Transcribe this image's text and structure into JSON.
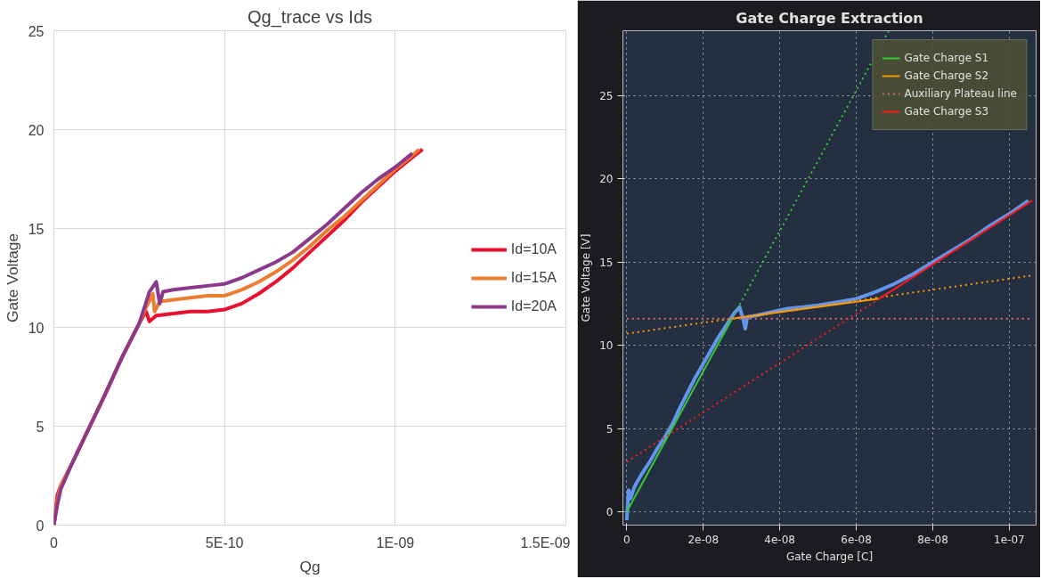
{
  "chart_data": [
    {
      "type": "line",
      "title": "Qg_trace vs Ids",
      "xlabel": "Qg",
      "ylabel": "Gate Voltage",
      "xlim": [
        0,
        1.5e-09
      ],
      "ylim": [
        0,
        25
      ],
      "xticks": [
        0,
        {
          "value": 5e-10,
          "label": "5E-10"
        },
        {
          "value": 1e-09,
          "label": "1E-09"
        },
        {
          "value": 1.5e-09,
          "label": "1.5E-09"
        }
      ],
      "yticks": [
        0,
        5,
        10,
        15,
        20,
        25
      ],
      "grid": true,
      "legend": "right",
      "line_style": "solid",
      "marker": "none",
      "series": [
        {
          "name": "Id=10A",
          "color": "#e8102e",
          "x": [
            0,
            1e-11,
            2e-11,
            5e-11,
            1e-10,
            1.5e-10,
            2e-10,
            2.5e-10,
            2.7e-10,
            2.8e-10,
            3e-10,
            3.5e-10,
            4e-10,
            4.5e-10,
            5e-10,
            5.5e-10,
            6e-10,
            6.5e-10,
            7e-10,
            7.5e-10,
            8e-10,
            8.5e-10,
            9e-10,
            9.5e-10,
            1e-09,
            1.05e-09,
            1.08e-09
          ],
          "values": [
            0,
            1.5,
            2,
            3,
            4.8,
            6.6,
            8.5,
            10.2,
            10.8,
            10.3,
            10.6,
            10.7,
            10.8,
            10.8,
            10.9,
            11.2,
            11.7,
            12.3,
            13,
            13.8,
            14.6,
            15.4,
            16.3,
            17.1,
            17.9,
            18.6,
            19
          ]
        },
        {
          "name": "Id=15A",
          "color": "#ed7d31",
          "x": [
            0,
            1e-11,
            2e-11,
            5e-11,
            1e-10,
            1.5e-10,
            2e-10,
            2.5e-10,
            2.7e-10,
            2.9e-10,
            2.95e-10,
            3.1e-10,
            3.5e-10,
            4e-10,
            4.5e-10,
            5e-10,
            5.5e-10,
            6e-10,
            6.5e-10,
            7e-10,
            7.5e-10,
            8e-10,
            8.5e-10,
            9e-10,
            9.5e-10,
            1e-09,
            1.05e-09,
            1.07e-09
          ],
          "values": [
            0,
            1.2,
            2,
            3,
            4.8,
            6.6,
            8.5,
            10.2,
            11,
            11.7,
            10.8,
            11.3,
            11.4,
            11.5,
            11.6,
            11.6,
            11.9,
            12.3,
            12.8,
            13.4,
            14.1,
            14.9,
            15.6,
            16.4,
            17.2,
            18,
            18.7,
            19
          ]
        },
        {
          "name": "Id=20A",
          "color": "#8b3a8b",
          "x": [
            0,
            1e-11,
            2e-11,
            5e-11,
            1e-10,
            1.5e-10,
            2e-10,
            2.5e-10,
            2.8e-10,
            3e-10,
            3.1e-10,
            3.2e-10,
            3.5e-10,
            4e-10,
            4.5e-10,
            5e-10,
            5.5e-10,
            6e-10,
            6.5e-10,
            7e-10,
            7.5e-10,
            8e-10,
            8.5e-10,
            9e-10,
            9.5e-10,
            1e-09,
            1.05e-09
          ],
          "values": [
            0,
            1.0,
            1.8,
            3,
            4.8,
            6.6,
            8.5,
            10.2,
            11.8,
            12.3,
            11.2,
            11.8,
            11.9,
            12,
            12.1,
            12.2,
            12.5,
            12.9,
            13.3,
            13.8,
            14.5,
            15.2,
            16,
            16.8,
            17.5,
            18.1,
            18.8
          ]
        }
      ]
    },
    {
      "type": "line",
      "title": "Gate Charge Extraction",
      "xlabel": "Gate Charge [C]",
      "ylabel": "Gate Voltage [V]",
      "xlim": [
        -1e-09,
        1.07e-07
      ],
      "ylim": [
        -0.8,
        28.9
      ],
      "xticks": [
        0,
        {
          "value": 2e-08,
          "label": "2e-08"
        },
        {
          "value": 4e-08,
          "label": "4e-08"
        },
        {
          "value": 6e-08,
          "label": "6e-08"
        },
        {
          "value": 8e-08,
          "label": "8e-08"
        },
        {
          "value": 1e-07,
          "label": "1e-07"
        }
      ],
      "yticks": [
        0,
        5,
        10,
        15,
        20,
        25
      ],
      "grid": true,
      "legend": "top right",
      "marker": "none",
      "series": [
        {
          "color": "#6495ed",
          "line_style": "solid",
          "x": [
            0,
            5e-10,
            1e-09,
            2e-09,
            4e-09,
            6e-09,
            8e-09,
            1e-08,
            1.2e-08,
            1.4e-08,
            1.6e-08,
            1.8e-08,
            2e-08,
            2.2e-08,
            2.4e-08,
            2.6e-08,
            2.8e-08,
            2.95e-08,
            3.05e-08,
            3.1e-08,
            3.15e-08,
            3.4e-08,
            3.8e-08,
            4.2e-08,
            4.6e-08,
            5e-08,
            5.5e-08,
            6e-08,
            6.5e-08,
            7e-08,
            7.5e-08,
            8e-08,
            8.5e-08,
            9e-08,
            9.5e-08,
            1e-07,
            1.05e-07
          ],
          "values": [
            -0.5,
            1.3,
            0.8,
            1.5,
            2.3,
            3,
            3.8,
            4.5,
            5.3,
            6.3,
            7.2,
            8.1,
            8.9,
            9.7,
            10.5,
            11.2,
            11.9,
            12.3,
            11.5,
            11,
            11.7,
            11.8,
            12,
            12.2,
            12.3,
            12.4,
            12.6,
            12.8,
            13.2,
            13.7,
            14.3,
            15,
            15.7,
            16.4,
            17.2,
            17.9,
            18.7
          ]
        },
        {
          "name": "Gate Charge S1",
          "color": "#33cc33",
          "line_style": "solid",
          "x": [
            0,
            2.75e-08
          ],
          "values": [
            0,
            11.6
          ]
        },
        {
          "color": "#33cc33",
          "line_style": "dotted",
          "x": [
            2.75e-08,
            6.85e-08
          ],
          "values": [
            11.6,
            28.9
          ]
        },
        {
          "name": "Gate Charge S2",
          "color": "#ff9900",
          "line_style": "solid",
          "x": [
            2.75e-08,
            6.6e-08
          ],
          "values": [
            11.6,
            12.8
          ]
        },
        {
          "color": "#ff9900",
          "line_style": "dotted",
          "x": [
            0,
            1.06e-07
          ],
          "values": [
            10.7,
            14.2
          ]
        },
        {
          "name": "Auxiliary Plateau line",
          "color": "#e06666",
          "line_style": "dotted",
          "x": [
            0,
            1.06e-07
          ],
          "values": [
            11.6,
            11.6
          ]
        },
        {
          "name": "Gate Charge S3",
          "color": "#ff1a1a",
          "line_style": "solid",
          "x": [
            6.6e-08,
            1.06e-07
          ],
          "values": [
            12.8,
            18.7
          ]
        },
        {
          "color": "#ff1a1a",
          "line_style": "dotted",
          "x": [
            0,
            6.6e-08
          ],
          "values": [
            3.0,
            12.8
          ]
        }
      ]
    }
  ]
}
